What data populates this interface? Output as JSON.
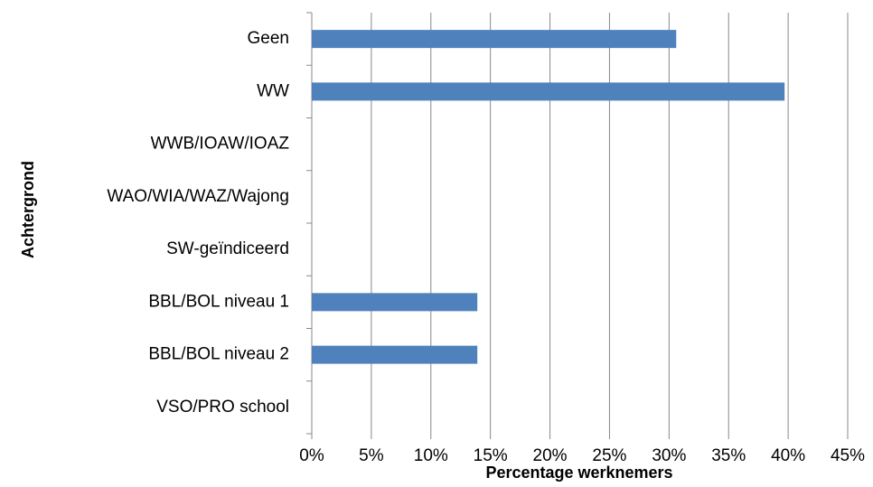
{
  "chart_data": {
    "type": "barh",
    "x_label": "Percentage werknemers",
    "y_label": "Achtergrond",
    "categories": [
      "Geen",
      "WW",
      "WWB/IOAW/IOAZ",
      "WAO/WIA/WAZ/Wajong",
      "SW-geïndiceerd",
      "BBL/BOL niveau 1",
      "BBL/BOL niveau 2",
      "VSO/PRO school"
    ],
    "values": [
      30.6,
      39.7,
      0,
      0,
      0,
      13.9,
      13.9,
      0
    ],
    "color": "#4f81bd",
    "xlim": [
      0,
      45
    ],
    "xticks": [
      {
        "value": 0,
        "label": "0%"
      },
      {
        "value": 5,
        "label": "5%"
      },
      {
        "value": 10,
        "label": "10%"
      },
      {
        "value": 15,
        "label": "15%"
      },
      {
        "value": 20,
        "label": "20%"
      },
      {
        "value": 25,
        "label": "25%"
      },
      {
        "value": 30,
        "label": "30%"
      },
      {
        "value": 35,
        "label": "35%"
      },
      {
        "value": 40,
        "label": "40%"
      },
      {
        "value": 45,
        "label": "45%"
      }
    ],
    "grid": true
  }
}
